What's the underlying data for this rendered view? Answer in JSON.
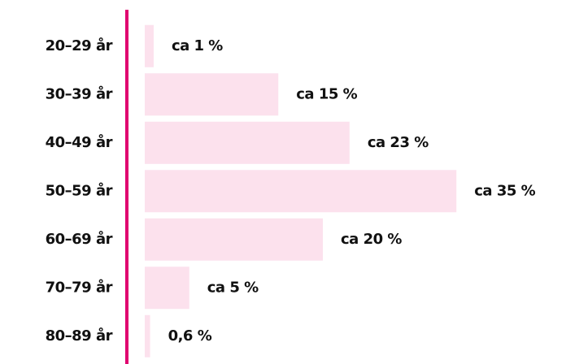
{
  "chart_data": {
    "type": "bar",
    "orientation": "horizontal",
    "categories": [
      "20–29 år",
      "30–39 år",
      "40–49 år",
      "50–59 år",
      "60–69 år",
      "70–79 år",
      "80–89 år"
    ],
    "values": [
      1,
      15,
      23,
      35,
      20,
      5,
      0.6
    ],
    "value_labels": [
      "ca 1 %",
      "ca 15 %",
      "ca 23 %",
      "ca 35 %",
      "ca 20 %",
      "ca 5 %",
      "0,6 %"
    ],
    "color": "#fce1ed",
    "axis_color": "#e0006f"
  }
}
